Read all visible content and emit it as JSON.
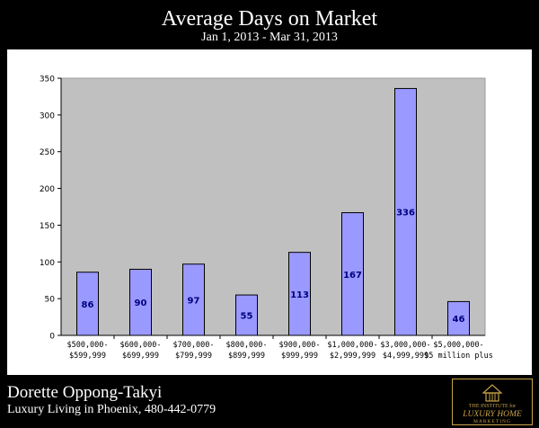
{
  "header": {
    "title": "Average Days on Market",
    "subtitle": "Jan 1, 2013 - Mar 31, 2013"
  },
  "footer": {
    "agent_name": "Dorette Oppong-Takyi",
    "tagline": "Luxury Living in Phoenix, 480-442-0779",
    "logo_text_top": "THE INSTITUTE for",
    "logo_text_main": "LUXURY HOME",
    "logo_text_bottom": "MARKETING"
  },
  "colors": {
    "bar_fill": "#9999ff",
    "bar_stroke": "#000000",
    "plot_bg": "#c0c0c0",
    "value_label": "#000080",
    "logo_gold": "#c8a24a"
  },
  "chart_data": {
    "type": "bar",
    "title": "Average Days on Market",
    "subtitle": "Jan 1, 2013 - Mar 31, 2013",
    "categories": [
      [
        "$500,000-",
        "$599,999"
      ],
      [
        "$600,000-",
        "$699,999"
      ],
      [
        "$700,000-",
        "$799,999"
      ],
      [
        "$800,000-",
        "$899,999"
      ],
      [
        "$900,000-",
        "$999,999"
      ],
      [
        "$1,000,000-",
        "$2,999,999"
      ],
      [
        "$3,000,000-",
        "$4,999,999"
      ],
      [
        "$5,000,000-",
        "$5 million plus"
      ]
    ],
    "values": [
      86,
      90,
      97,
      55,
      113,
      167,
      336,
      46
    ],
    "ylim": [
      0,
      350
    ],
    "yticks": [
      0,
      50,
      100,
      150,
      200,
      250,
      300,
      350
    ],
    "xlabel": "",
    "ylabel": "",
    "grid": true,
    "legend": "none"
  }
}
